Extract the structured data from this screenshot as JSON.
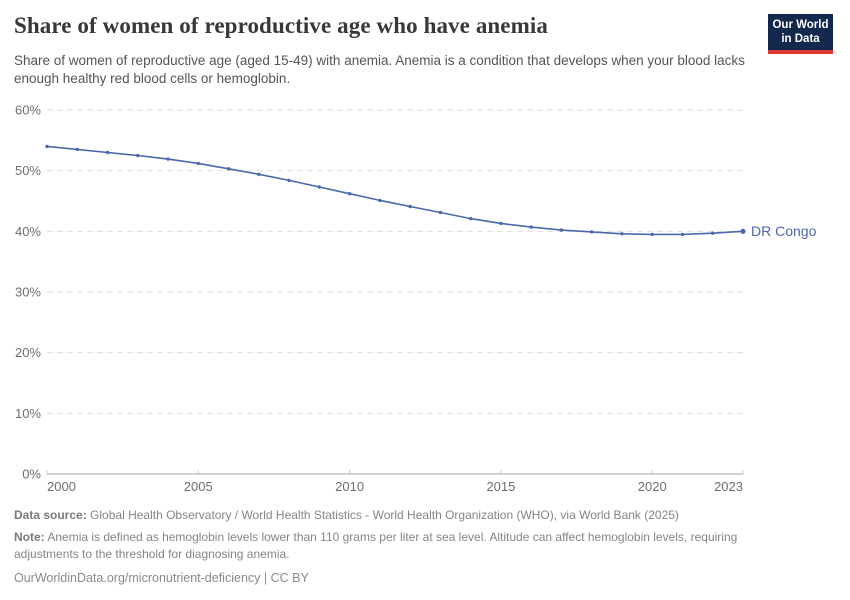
{
  "header": {
    "title": "Share of women of reproductive age who have anemia",
    "subtitle": "Share of women of reproductive age (aged 15-49) with anemia. Anemia is a condition that develops when your blood lacks enough healthy red blood cells or hemoglobin.",
    "logo": {
      "line1": "Our World",
      "line2": "in Data"
    }
  },
  "chart_data": {
    "type": "line",
    "title": "Share of women of reproductive age who have anemia",
    "x": [
      2000,
      2001,
      2002,
      2003,
      2004,
      2005,
      2006,
      2007,
      2008,
      2009,
      2010,
      2011,
      2012,
      2013,
      2014,
      2015,
      2016,
      2017,
      2018,
      2019,
      2020,
      2021,
      2022,
      2023
    ],
    "series": [
      {
        "name": "DR Congo",
        "values": [
          54.0,
          53.5,
          53.0,
          52.5,
          51.9,
          51.2,
          50.3,
          49.4,
          48.4,
          47.3,
          46.2,
          45.1,
          44.1,
          43.1,
          42.1,
          41.3,
          40.7,
          40.2,
          39.9,
          39.6,
          39.5,
          39.5,
          39.7,
          40.0
        ]
      }
    ],
    "xlabel": "",
    "ylabel": "",
    "ylim": [
      0,
      60
    ],
    "y_ticks": [
      0,
      10,
      20,
      30,
      40,
      50,
      60
    ],
    "y_tick_suffix": "%",
    "x_ticks": [
      2000,
      2005,
      2010,
      2015,
      2020,
      2023
    ],
    "grid": "horizontal-dashed",
    "legend_position": "end-of-line-label"
  },
  "footer": {
    "data_source_label": "Data source:",
    "data_source_text": "Global Health Observatory / World Health Statistics - World Health Organization (WHO), via World Bank (2025)",
    "note_label": "Note:",
    "note_text": "Anemia is defined as hemoglobin levels lower than 110 grams per liter at sea level. Altitude can affect hemoglobin levels, requiring adjustments to the threshold for diagnosing anemia.",
    "citation": "OurWorldinData.org/micronutrient-deficiency | CC BY"
  },
  "colors": {
    "line": "#4a68ab",
    "grid": "#dedede",
    "axis": "#a6a6a6",
    "tick": "#c9c9c9",
    "tick_label": "#6e6e6e",
    "entity_label": "#4a68ab",
    "title": "#383838",
    "subtitle": "#555555",
    "footer": "#858585",
    "logo_bg": "#12294d",
    "logo_red": "#dc3a32"
  }
}
